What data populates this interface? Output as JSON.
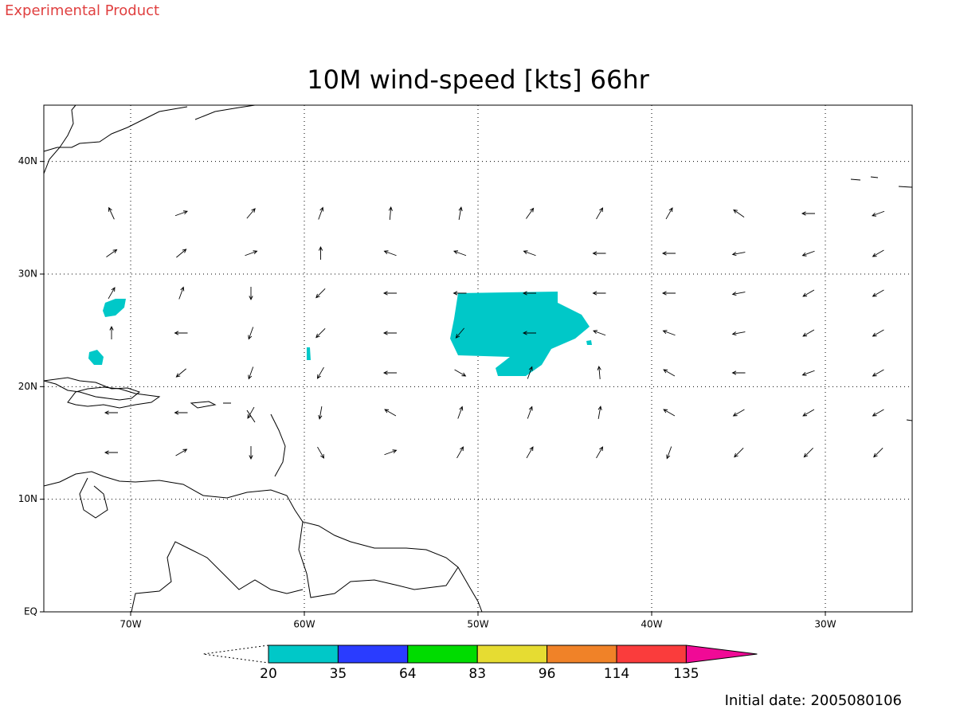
{
  "header": {
    "note": "Experimental Product",
    "title": "10M wind-speed [kts] 66hr"
  },
  "map": {
    "lon_range": [
      -75,
      -25
    ],
    "lat_range": [
      0,
      45
    ],
    "grid": true,
    "lon_ticks": [
      {
        "value": -70,
        "label": "70W"
      },
      {
        "value": -60,
        "label": "60W"
      },
      {
        "value": -50,
        "label": "50W"
      },
      {
        "value": -40,
        "label": "40W"
      },
      {
        "value": -30,
        "label": "30W"
      }
    ],
    "lat_ticks": [
      {
        "value": 0,
        "label": "EQ"
      },
      {
        "value": 10,
        "label": "10N"
      },
      {
        "value": 20,
        "label": "20N"
      },
      {
        "value": 30,
        "label": "30N"
      },
      {
        "value": 40,
        "label": "40N"
      }
    ]
  },
  "colorbar": {
    "levels": [
      20,
      35,
      64,
      83,
      96,
      114,
      135
    ],
    "colors": [
      "#00c8c8",
      "#2a3cff",
      "#00dc00",
      "#e6dc32",
      "#f08228",
      "#fa3c3c",
      "#f00a96"
    ]
  },
  "footer": {
    "initial_date": "Initial date: 2005080106"
  }
}
